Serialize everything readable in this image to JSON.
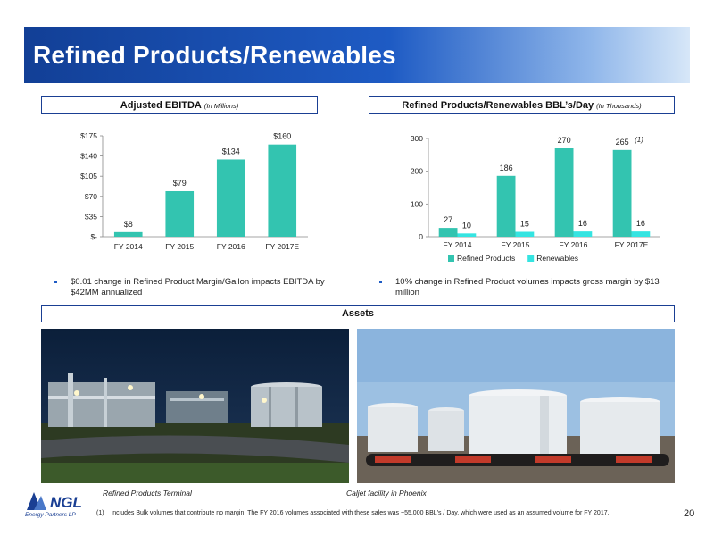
{
  "page": {
    "title": "Refined Products/Renewables",
    "page_number": "20",
    "footnote_marker": "(1)",
    "footnote_text": "Includes Bulk volumes that contribute no margin.  The FY 2016 volumes associated with these sales was ~55,000 BBL's / Day, which were used as an assumed volume for FY 2017.",
    "logo_text": "NGL",
    "logo_tagline": "Energy Partners LP"
  },
  "sections": {
    "ebitda_title": "Adjusted EBITDA",
    "ebitda_subtitle": "(In Millions)",
    "volumes_title": "Refined Products/Renewables BBL’s/Day",
    "volumes_subtitle": "(In Thousands)",
    "assets_title": "Assets"
  },
  "bullets": {
    "left": "$0.01 change in Refined Product Margin/Gallon impacts EBITDA by $42MM annualized",
    "right": "10% change in Refined Product volumes impacts gross margin by $13 million"
  },
  "captions": {
    "left": "Refined Products Terminal",
    "right": "Caljet facility in Phoenix"
  },
  "colors": {
    "refined": "#33c4b0",
    "renewables": "#35e4e1",
    "brand_blue": "#1a3f93"
  },
  "chart_data": [
    {
      "type": "bar",
      "categories": [
        "FY 2014",
        "FY 2015",
        "FY 2016",
        "FY 2017E"
      ],
      "values": [
        8,
        79,
        134,
        160
      ],
      "value_labels": [
        "$8",
        "$79",
        "$134",
        "$160"
      ],
      "y_ticks": [
        0,
        35,
        70,
        105,
        140,
        175
      ],
      "y_tick_labels": [
        "$-",
        "$35",
        "$70",
        "$105",
        "$140",
        "$175"
      ],
      "ylim": [
        0,
        175
      ],
      "grid": false
    },
    {
      "type": "bar",
      "categories": [
        "FY 2014",
        "FY 2015",
        "FY 2016",
        "FY 2017E"
      ],
      "series": [
        {
          "name": "Refined Products",
          "values": [
            27,
            186,
            270,
            265
          ],
          "value_labels": [
            "27",
            "186",
            "270",
            "265"
          ]
        },
        {
          "name": "Renewables",
          "values": [
            10,
            15,
            16,
            16
          ],
          "value_labels": [
            "10",
            "15",
            "16",
            "16"
          ]
        }
      ],
      "annotation": "(1)",
      "y_ticks": [
        0,
        100,
        200,
        300
      ],
      "y_tick_labels": [
        "0",
        "100",
        "200",
        "300"
      ],
      "ylim": [
        0,
        300
      ],
      "legend": "bottom",
      "grid": false
    }
  ]
}
